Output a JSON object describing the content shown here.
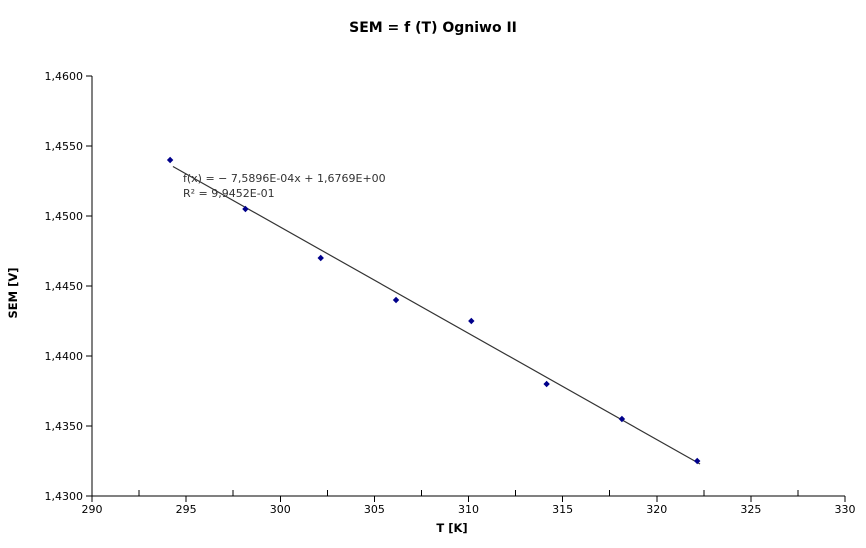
{
  "chart_data": {
    "type": "scatter",
    "title": "SEM = f (T) Ogniwo II",
    "xlabel": "T [K]",
    "ylabel": "SEM [V]",
    "xlim": [
      290,
      330
    ],
    "ylim": [
      1.43,
      1.46
    ],
    "x_ticks": [
      290,
      295,
      300,
      305,
      310,
      315,
      320,
      325,
      330
    ],
    "x_major_step": 5,
    "x_minor_step": 2.5,
    "y_ticks": [
      1.43,
      1.435,
      1.44,
      1.445,
      1.45,
      1.455,
      1.46
    ],
    "y_tick_decimals": 4,
    "decimal_separator": ",",
    "grid": false,
    "legend": false,
    "axis_color": "#000000",
    "series": [
      {
        "name": "SEM",
        "marker": "diamond",
        "color": "#00008B",
        "points": [
          [
            294.15,
            1.454
          ],
          [
            298.15,
            1.4505
          ],
          [
            302.15,
            1.447
          ],
          [
            306.15,
            1.444
          ],
          [
            310.15,
            1.4425
          ],
          [
            314.15,
            1.438
          ],
          [
            318.15,
            1.4355
          ],
          [
            322.15,
            1.4325
          ]
        ]
      }
    ],
    "trendline": {
      "slope": -0.00075896,
      "intercept": 1.6769,
      "x_start": 294.3,
      "x_end": 322.3,
      "color": "#333333",
      "equation_label": "f(x) = − 7,5896E-04x + 1,6769E+00",
      "r2_label": "R² = 9,9452E-01"
    }
  }
}
